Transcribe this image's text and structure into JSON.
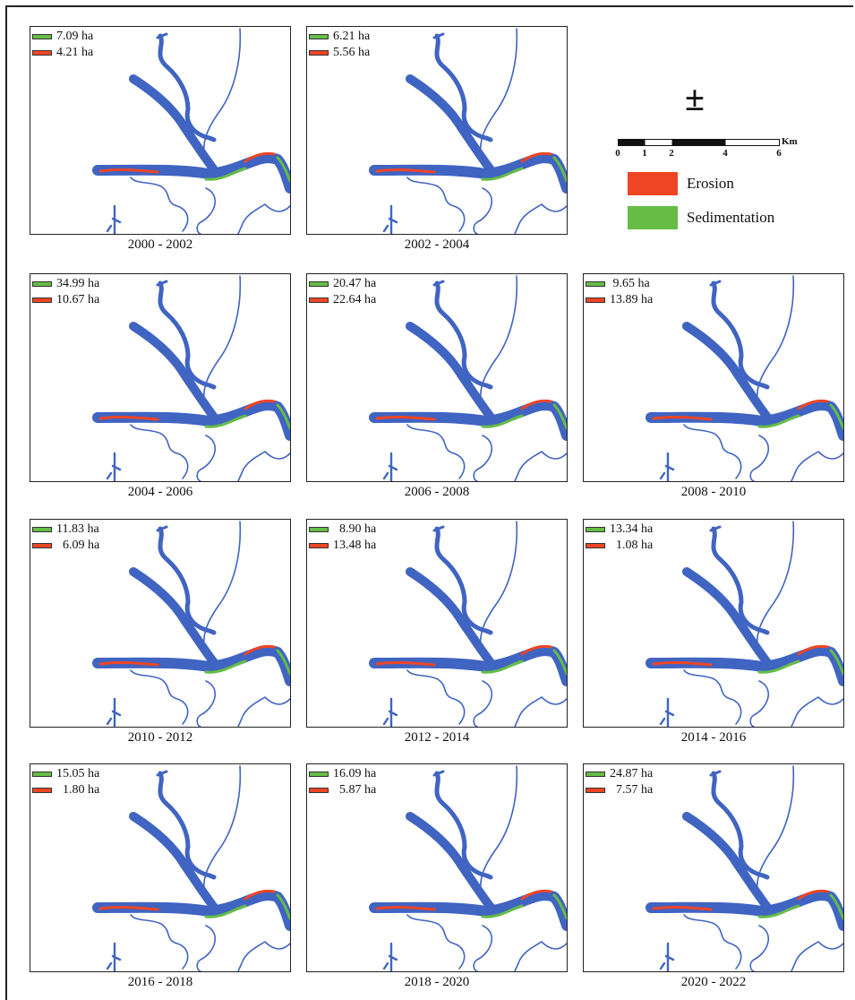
{
  "colors": {
    "river": "#4064c2",
    "erosion": "#f04524",
    "sedimentation": "#65bd45",
    "frame": "#222222"
  },
  "legend": {
    "north_symbol": "±",
    "scale_unit": "Km",
    "scale_ticks": [
      "0",
      "1",
      "2",
      "4",
      "6"
    ],
    "classes": [
      {
        "label": "Erosion",
        "color": "#f04524"
      },
      {
        "label": "Sedimentation",
        "color": "#65bd45"
      }
    ]
  },
  "panels": [
    {
      "period": "2000 - 2002",
      "sedimentation": "7.09 ha",
      "erosion": "4.21 ha"
    },
    {
      "period": "2002 - 2004",
      "sedimentation": "6.21 ha",
      "erosion": "5.56 ha"
    },
    {
      "period": "2004 - 2006",
      "sedimentation": "34.99 ha",
      "erosion": "10.67 ha"
    },
    {
      "period": "2006 - 2008",
      "sedimentation": "20.47 ha",
      "erosion": "22.64 ha"
    },
    {
      "period": "2008 - 2010",
      "sedimentation": " 9.65 ha",
      "erosion": "13.89 ha"
    },
    {
      "period": "2010 - 2012",
      "sedimentation": "11.83 ha",
      "erosion": "  6.09 ha"
    },
    {
      "period": "2012 - 2014",
      "sedimentation": "  8.90 ha",
      "erosion": "13.48 ha"
    },
    {
      "period": "2014 - 2016",
      "sedimentation": "13.34 ha",
      "erosion": "  1.08 ha"
    },
    {
      "period": "2016 - 2018",
      "sedimentation": "15.05 ha",
      "erosion": "  1.80 ha"
    },
    {
      "period": "2018 - 2020",
      "sedimentation": "16.09 ha",
      "erosion": "  5.87 ha"
    },
    {
      "period": "2020 - 2022",
      "sedimentation": "24.87 ha",
      "erosion": "  7.57 ha"
    }
  ]
}
